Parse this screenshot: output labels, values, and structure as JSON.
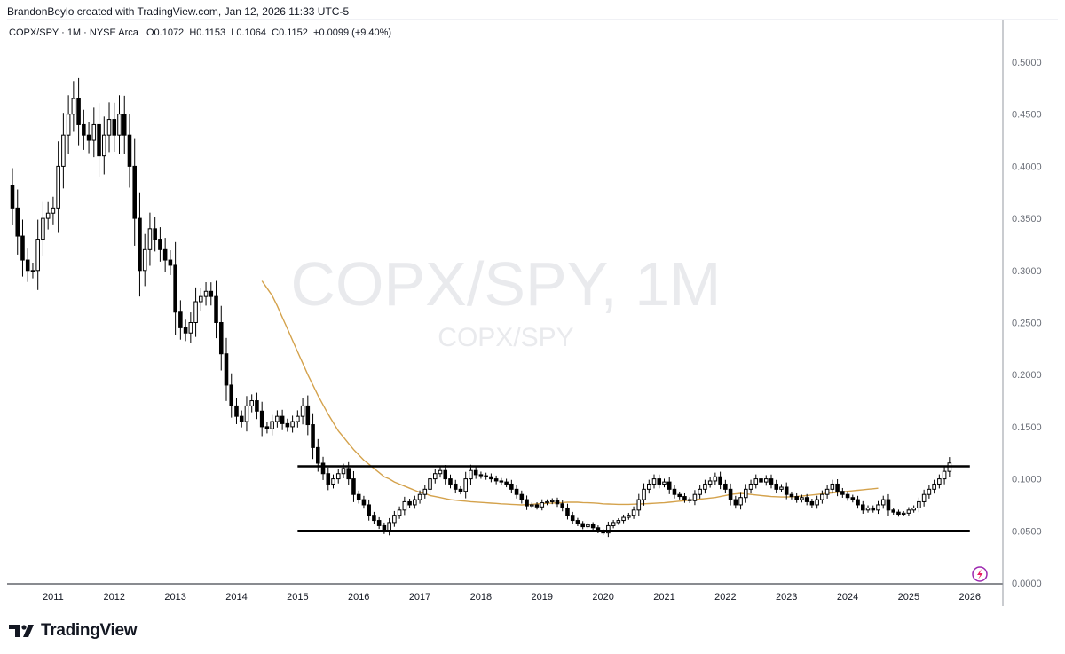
{
  "header": {
    "attribution": "BrandonBeylo created with TradingView.com, Jan 12, 2026 11:33 UTC-5"
  },
  "legend": {
    "symbol": "COPX/SPY · 1M · NYSE Arca",
    "open_label": "O",
    "open": "0.1072",
    "high_label": "H",
    "high": "0.1153",
    "low_label": "L",
    "low": "0.1064",
    "close_label": "C",
    "close": "0.1152",
    "change": "+0.0099 (+9.40%)"
  },
  "watermark": {
    "main": "COPX/SPY, 1M",
    "sub": "COPX/SPY"
  },
  "footer": {
    "brand": "TradingView"
  },
  "colors": {
    "up_body": "#ffffff",
    "down_body": "#000000",
    "wick": "#000000",
    "ma_line": "#d4a24c",
    "hline": "#000000",
    "watermark": "#e9eaed",
    "axis_text": "#6b6f78",
    "lightning": "#9c27b0"
  },
  "chart_data": {
    "type": "candlestick",
    "interval": "1M",
    "x_start": "2010-05",
    "xlim": [
      "2010-05",
      "2026-04"
    ],
    "ylim": [
      0,
      0.5
    ],
    "y_ticks": [
      "0.5000",
      "0.4500",
      "0.4000",
      "0.3500",
      "0.3000",
      "0.2500",
      "0.2000",
      "0.1500",
      "0.1000",
      "0.0500",
      "0.0000"
    ],
    "x_ticks": [
      "2011",
      "2012",
      "2013",
      "2014",
      "2015",
      "2016",
      "2017",
      "2018",
      "2019",
      "2020",
      "2021",
      "2022",
      "2023",
      "2024",
      "2025",
      "2026"
    ],
    "close": [
      0.36,
      0.333,
      0.31,
      0.3,
      0.3,
      0.33,
      0.35,
      0.355,
      0.36,
      0.4,
      0.43,
      0.45,
      0.465,
      0.44,
      0.43,
      0.425,
      0.44,
      0.41,
      0.43,
      0.445,
      0.43,
      0.45,
      0.43,
      0.4,
      0.35,
      0.3,
      0.32,
      0.34,
      0.33,
      0.32,
      0.31,
      0.305,
      0.26,
      0.245,
      0.24,
      0.25,
      0.27,
      0.275,
      0.28,
      0.275,
      0.25,
      0.22,
      0.19,
      0.17,
      0.16,
      0.155,
      0.17,
      0.175,
      0.165,
      0.15,
      0.148,
      0.155,
      0.16,
      0.153,
      0.15,
      0.155,
      0.16,
      0.17,
      0.152,
      0.13,
      0.115,
      0.105,
      0.095,
      0.1,
      0.105,
      0.11,
      0.1,
      0.085,
      0.08,
      0.075,
      0.065,
      0.06,
      0.055,
      0.05,
      0.058,
      0.065,
      0.07,
      0.078,
      0.075,
      0.08,
      0.085,
      0.09,
      0.1,
      0.105,
      0.108,
      0.1,
      0.095,
      0.09,
      0.088,
      0.1,
      0.108,
      0.104,
      0.103,
      0.102,
      0.1,
      0.098,
      0.097,
      0.095,
      0.09,
      0.085,
      0.08,
      0.074,
      0.075,
      0.073,
      0.077,
      0.078,
      0.079,
      0.076,
      0.072,
      0.065,
      0.06,
      0.057,
      0.054,
      0.056,
      0.053,
      0.05,
      0.048,
      0.055,
      0.058,
      0.06,
      0.063,
      0.065,
      0.07,
      0.08,
      0.09,
      0.095,
      0.1,
      0.095,
      0.097,
      0.09,
      0.085,
      0.083,
      0.08,
      0.079,
      0.085,
      0.09,
      0.095,
      0.098,
      0.102,
      0.095,
      0.09,
      0.08,
      0.075,
      0.082,
      0.09,
      0.095,
      0.1,
      0.097,
      0.1,
      0.095,
      0.09,
      0.092,
      0.085,
      0.083,
      0.08,
      0.082,
      0.078,
      0.075,
      0.08,
      0.085,
      0.09,
      0.095,
      0.088,
      0.085,
      0.082,
      0.08,
      0.075,
      0.07,
      0.072,
      0.07,
      0.075,
      0.08,
      0.07,
      0.068,
      0.066,
      0.067,
      0.07,
      0.072,
      0.078,
      0.085,
      0.09,
      0.095,
      0.1,
      0.1072,
      0.1152
    ],
    "series": [
      {
        "name": "",
        "type": "moving_average",
        "start": "2014-06",
        "values": [
          0.29,
          0.283,
          0.276,
          0.266,
          0.255,
          0.244,
          0.233,
          0.222,
          0.211,
          0.2,
          0.19,
          0.18,
          0.171,
          0.162,
          0.154,
          0.146,
          0.14,
          0.134,
          0.128,
          0.123,
          0.118,
          0.114,
          0.11,
          0.106,
          0.102,
          0.1,
          0.097,
          0.095,
          0.093,
          0.091,
          0.089,
          0.087,
          0.086,
          0.084,
          0.083,
          0.082,
          0.081,
          0.08,
          0.0795,
          0.079,
          0.0785,
          0.078,
          0.0777,
          0.0773,
          0.077,
          0.0767,
          0.0764,
          0.076,
          0.0757,
          0.0755,
          0.0752,
          0.075,
          0.0752,
          0.0755,
          0.076,
          0.0762,
          0.0765,
          0.0767,
          0.077,
          0.0772,
          0.0775,
          0.0775,
          0.0775,
          0.0772,
          0.077,
          0.0768,
          0.0765,
          0.076,
          0.0758,
          0.0756,
          0.0755,
          0.0755,
          0.0755,
          0.0756,
          0.0758,
          0.076,
          0.0762,
          0.0765,
          0.0768,
          0.077,
          0.0775,
          0.078,
          0.0785,
          0.079,
          0.0795,
          0.08,
          0.0805,
          0.081,
          0.0815,
          0.082,
          0.083,
          0.084,
          0.085,
          0.0855,
          0.086,
          0.0855,
          0.085,
          0.0845,
          0.084,
          0.0835,
          0.083,
          0.0828,
          0.0825,
          0.0825,
          0.0827,
          0.083,
          0.0835,
          0.084,
          0.0845,
          0.085,
          0.0855,
          0.086,
          0.0865,
          0.087,
          0.0875,
          0.088,
          0.0885,
          0.089,
          0.0895,
          0.09,
          0.0905,
          0.091
        ]
      }
    ],
    "horizontal_lines": [
      {
        "price": 0.112,
        "from": "2015-01",
        "to": "2026-01"
      },
      {
        "price": 0.05,
        "from": "2015-01",
        "to": "2026-01"
      }
    ]
  }
}
